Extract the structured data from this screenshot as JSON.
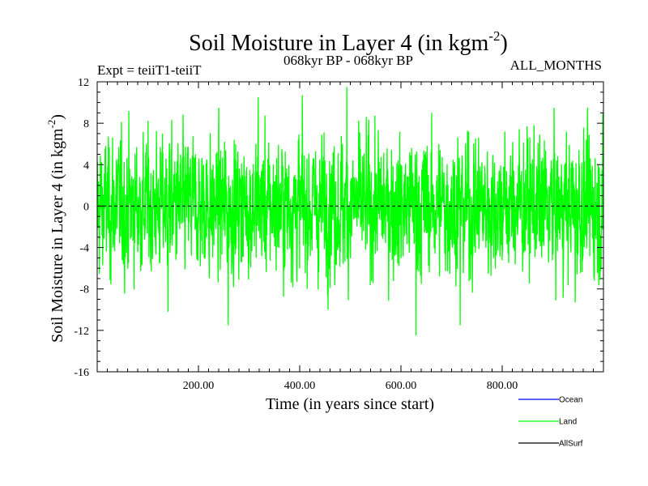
{
  "chart_data": {
    "type": "line",
    "title": "Soil Moisture in Layer 4 (in kgm",
    "title_sup": "-2",
    "title_close": ")",
    "subtitle_left": "Expt = teiiT1-teiiT",
    "subtitle_center": "068kyr BP - 068kyr BP",
    "subtitle_right": "ALL_MONTHS",
    "xlabel": "Time (in years since start)",
    "ylabel": "Soil Moisture in Layer 4 (in kgm",
    "ylabel_sup": "-2",
    "ylabel_close": ")",
    "xlim": [
      0,
      1000
    ],
    "ylim": [
      -16,
      12
    ],
    "x_ticks": [
      200,
      400,
      600,
      800
    ],
    "x_tick_labels": [
      "200.00",
      "400.00",
      "600.00",
      "800.00"
    ],
    "y_ticks": [
      -16,
      -12,
      -8,
      -4,
      0,
      4,
      8,
      12
    ],
    "y_tick_labels": [
      "-16",
      "-12",
      "-8",
      "-4",
      "0",
      "4",
      "8",
      "12"
    ],
    "zero_line": true,
    "legend_position": "bottom-right",
    "series": [
      {
        "name": "Ocean",
        "color": "#0000ff",
        "values": []
      },
      {
        "name": "Land",
        "color": "#00ff00",
        "description": "monthly anomaly time series, approx. range -12.5 to 11.5",
        "x_start": 0,
        "x_end": 1000,
        "noise_std": 3.2,
        "notable_points": [
          {
            "x": 259,
            "y": -11.5
          },
          {
            "x": 318,
            "y": 10.5
          },
          {
            "x": 493,
            "y": 11.5
          },
          {
            "x": 630,
            "y": -12.5
          },
          {
            "x": 717,
            "y": -11.5
          },
          {
            "x": 405,
            "y": 10.7
          },
          {
            "x": 140,
            "y": -10.2
          },
          {
            "x": 944,
            "y": -9.3
          }
        ]
      },
      {
        "name": "AllSurf",
        "color": "#000000",
        "values": []
      }
    ]
  }
}
